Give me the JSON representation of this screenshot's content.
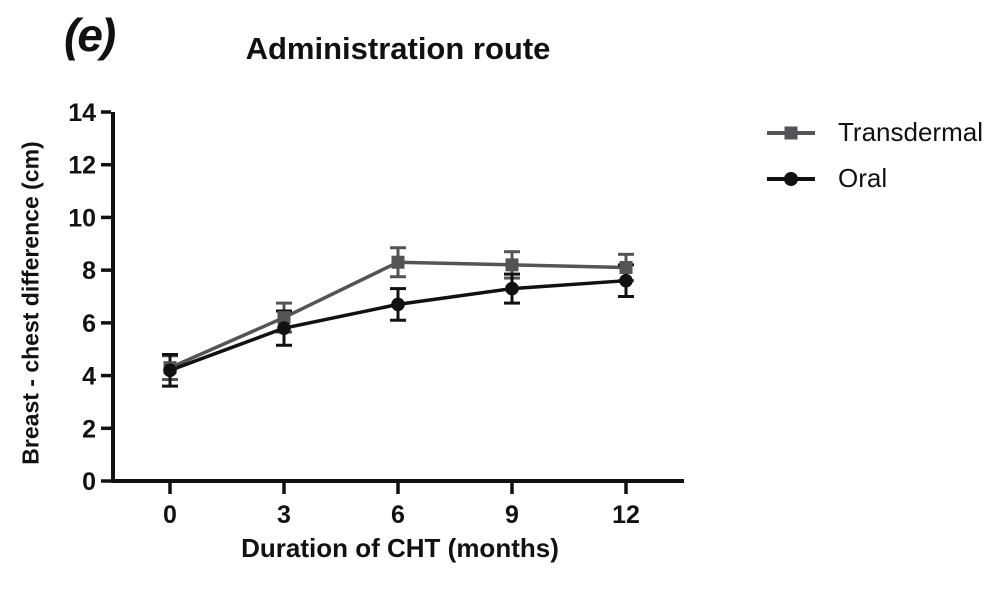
{
  "figure": {
    "panel_label": "(e)"
  },
  "chart_data": {
    "type": "line",
    "title": "Administration route",
    "xlabel": "Duration of CHT (months)",
    "ylabel": "Breast - chest difference (cm)",
    "x": [
      0,
      3,
      6,
      9,
      12
    ],
    "x_ticks": [
      0,
      3,
      6,
      9,
      12
    ],
    "y_ticks": [
      0,
      2,
      4,
      6,
      8,
      10,
      12,
      14
    ],
    "xlim": [
      -1.5,
      13.5
    ],
    "ylim": [
      0,
      14
    ],
    "grid": false,
    "legend_position": "right-outside",
    "ink_color": "#111111",
    "series": [
      {
        "name": "Transdermal",
        "marker": "square",
        "color": "#545456",
        "values": [
          4.3,
          6.2,
          8.3,
          8.2,
          8.1
        ],
        "errors": [
          0.45,
          0.55,
          0.55,
          0.5,
          0.5
        ]
      },
      {
        "name": "Oral",
        "marker": "circle",
        "color": "#111111",
        "values": [
          4.2,
          5.8,
          6.7,
          7.3,
          7.6
        ],
        "errors": [
          0.6,
          0.65,
          0.6,
          0.55,
          0.6
        ]
      }
    ]
  }
}
